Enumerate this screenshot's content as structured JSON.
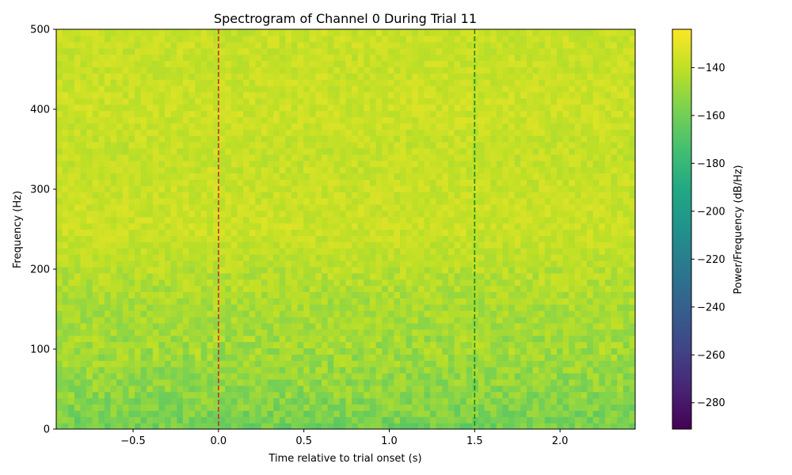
{
  "chart_data": {
    "type": "heatmap",
    "title": "Spectrogram of Channel 0 During Trial 11",
    "xlabel": "Time relative to trial onset (s)",
    "ylabel": "Frequency (Hz)",
    "xlim": [
      -0.95,
      2.44
    ],
    "ylim": [
      0,
      500
    ],
    "x_ticks": [
      {
        "value": -0.5,
        "label": "−0.5"
      },
      {
        "value": 0.0,
        "label": "0.0"
      },
      {
        "value": 0.5,
        "label": "0.5"
      },
      {
        "value": 1.0,
        "label": "1.0"
      },
      {
        "value": 1.5,
        "label": "1.5"
      },
      {
        "value": 2.0,
        "label": "2.0"
      }
    ],
    "y_ticks": [
      {
        "value": 0,
        "label": "0"
      },
      {
        "value": 100,
        "label": "100"
      },
      {
        "value": 200,
        "label": "200"
      },
      {
        "value": 300,
        "label": "300"
      },
      {
        "value": 400,
        "label": "400"
      },
      {
        "value": 500,
        "label": "500"
      }
    ],
    "colormap": "viridis",
    "colorbar": {
      "label": "Power/Frequency (dB/Hz)",
      "vmin": -291,
      "vmax": -124,
      "ticks": [
        {
          "value": -140,
          "label": "−140"
        },
        {
          "value": -160,
          "label": "−160"
        },
        {
          "value": -180,
          "label": "−180"
        },
        {
          "value": -200,
          "label": "−200"
        },
        {
          "value": -220,
          "label": "−220"
        },
        {
          "value": -240,
          "label": "−240"
        },
        {
          "value": -260,
          "label": "−260"
        },
        {
          "value": -280,
          "label": "−280"
        }
      ]
    },
    "power_profile": {
      "frequency_hz": [
        0,
        25,
        50,
        100,
        150,
        200,
        250,
        300,
        350,
        400,
        450,
        500
      ],
      "mean_db": [
        -160,
        -156,
        -152,
        -148,
        -146,
        -142,
        -137,
        -138,
        -139,
        -137,
        -138,
        -138
      ]
    },
    "vertical_markers": [
      {
        "x": 0.0,
        "color": "#d62728",
        "style": "dashed"
      },
      {
        "x": 1.5,
        "color": "#1a8a1a",
        "style": "dashed"
      }
    ]
  }
}
